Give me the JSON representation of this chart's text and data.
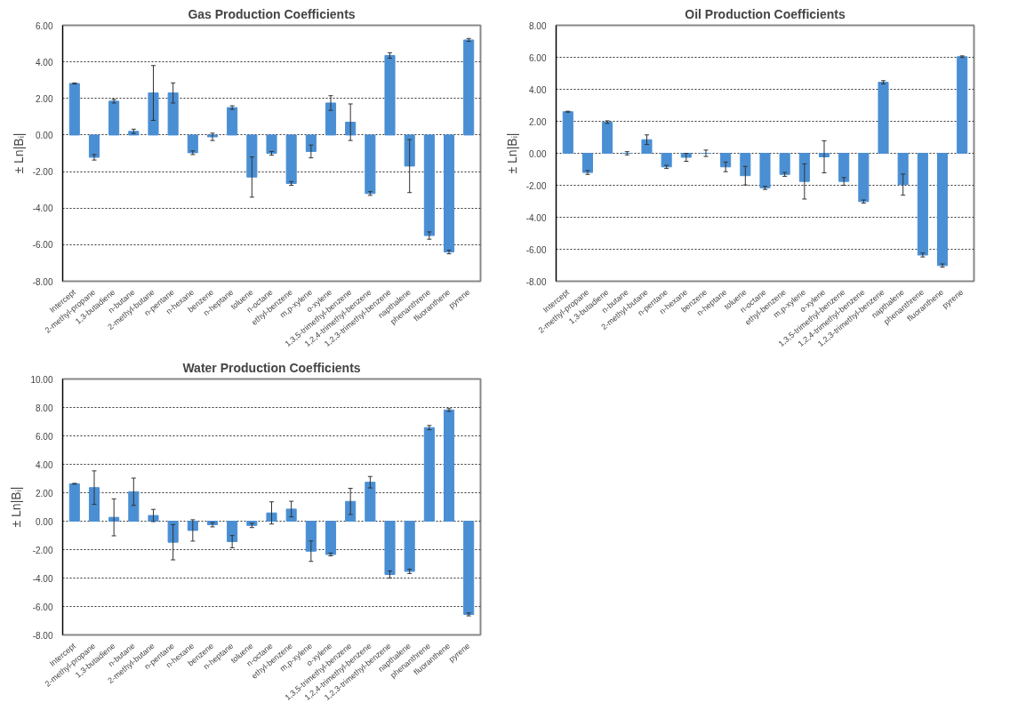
{
  "chart_data": [
    {
      "type": "bar",
      "title": "Gas Production Coefficients",
      "ylabel": "± Ln|Bᵢ|",
      "color": "#4a8fd4",
      "grid": "y",
      "categories": [
        "Intercept",
        "2-methyl-propane",
        "1,3-butadiene",
        "n-butane",
        "2-methyl-butane",
        "n-pentane",
        "n-hexane",
        "benzene",
        "n-heptane",
        "toluene",
        "n-octane",
        "ethyl-benzene",
        "m,p-xylene",
        "o-xylene",
        "1,3,5-trimethyl-benzene",
        "1,2,4-trimethyl-benzene",
        "1,2,3-trimethyl-benzene",
        "napthalene",
        "phenanthrene",
        "fluoranthene",
        "pyrene"
      ],
      "values": [
        2.82,
        -1.22,
        1.85,
        0.2,
        2.3,
        2.3,
        -0.97,
        -0.1,
        1.5,
        -2.3,
        -1.0,
        -2.65,
        -0.9,
        1.75,
        0.7,
        -3.2,
        4.35,
        -1.7,
        -5.5,
        -6.4,
        5.2
      ],
      "errors": [
        0.03,
        0.15,
        0.1,
        0.12,
        1.5,
        0.55,
        0.1,
        0.2,
        0.1,
        1.1,
        0.1,
        0.1,
        0.35,
        0.4,
        1.0,
        0.1,
        0.15,
        1.45,
        0.2,
        0.1,
        0.08
      ],
      "ylim": [
        -8,
        6
      ],
      "yticks": [
        {
          "value": -8,
          "label": "-8.00"
        },
        {
          "value": -6,
          "label": "-6.00"
        },
        {
          "value": -4,
          "label": "-4.00"
        },
        {
          "value": -2,
          "label": "-2.00"
        },
        {
          "value": 0,
          "label": "0.00"
        },
        {
          "value": 2,
          "label": "2.00"
        },
        {
          "value": 4,
          "label": "4.00"
        },
        {
          "value": 6,
          "label": "6.00"
        }
      ]
    },
    {
      "type": "bar",
      "title": "Oil Production Coefficients",
      "ylabel": "± Ln|Bᵢ|",
      "color": "#4a8fd4",
      "grid": "y",
      "categories": [
        "Intercept",
        "2-methyl-propane",
        "1,3-butadiene",
        "n-butane",
        "2-methyl-butane",
        "n-pentane",
        "n-hexane",
        "benzene",
        "n-heptane",
        "toluene",
        "n-octane",
        "ethyl-benzene",
        "m,p-xylene",
        "o-xylene",
        "1,3,5-trimethyl-benzene",
        "1,2,4-trimethyl-benzene",
        "1,2,3-trimethyl-benzene",
        "napthalene",
        "phenanthrene",
        "fluoranthene",
        "pyrene"
      ],
      "values": [
        2.6,
        -1.2,
        1.95,
        0.0,
        0.85,
        -0.85,
        -0.25,
        0.0,
        -0.85,
        -1.4,
        -2.16,
        -1.32,
        -1.76,
        -0.22,
        -1.76,
        -3.02,
        4.44,
        -1.96,
        -6.36,
        -7.02,
        6.04
      ],
      "errors": [
        0.03,
        0.12,
        0.08,
        0.1,
        0.3,
        0.1,
        0.25,
        0.2,
        0.3,
        0.58,
        0.1,
        0.12,
        1.1,
        1.0,
        0.24,
        0.1,
        0.1,
        0.66,
        0.12,
        0.1,
        0.05
      ],
      "ylim": [
        -8,
        8
      ],
      "yticks": [
        {
          "value": -8,
          "label": "-8.00"
        },
        {
          "value": -6,
          "label": "-6.00"
        },
        {
          "value": -4,
          "label": "-4.00"
        },
        {
          "value": -2,
          "label": "-2.00"
        },
        {
          "value": 0,
          "label": "0.00"
        },
        {
          "value": 2,
          "label": "2.00"
        },
        {
          "value": 4,
          "label": "4.00"
        },
        {
          "value": 6,
          "label": "6.00"
        },
        {
          "value": 8,
          "label": "8.00"
        }
      ]
    },
    {
      "type": "bar",
      "title": "Water Production Coefficients",
      "ylabel": "± Ln|Bᵢ|",
      "color": "#4a8fd4",
      "grid": "y",
      "categories": [
        "Intercept",
        "2-methyl-propane",
        "1,3-butadiene",
        "n-butane",
        "2-methyl-butane",
        "n-pentane",
        "n-hexane",
        "benzene",
        "n-heptane",
        "toluene",
        "n-octane",
        "ethyl-benzene",
        "m,p-xylene",
        "o-xylene",
        "1,3,5-trimethyl-benzene",
        "1,2,4-trimethyl-benzene",
        "1,2,3-trimethyl-benzene",
        "napthalene",
        "phenanthrene",
        "fluoranthene",
        "pyrene"
      ],
      "values": [
        2.63,
        2.36,
        0.27,
        2.07,
        0.4,
        -1.48,
        -0.65,
        -0.25,
        -1.44,
        -0.3,
        0.58,
        0.85,
        -2.11,
        -2.34,
        1.39,
        2.74,
        -3.75,
        -3.53,
        6.58,
        7.82,
        -6.56
      ],
      "errors": [
        0.03,
        1.18,
        1.3,
        0.96,
        0.43,
        1.24,
        0.75,
        0.15,
        0.43,
        0.15,
        0.78,
        0.55,
        0.72,
        0.1,
        0.92,
        0.4,
        0.25,
        0.15,
        0.15,
        0.1,
        0.1
      ],
      "ylim": [
        -8,
        10
      ],
      "yticks": [
        {
          "value": -8,
          "label": "-8.00"
        },
        {
          "value": -6,
          "label": "-6.00"
        },
        {
          "value": -4,
          "label": "-4.00"
        },
        {
          "value": -2,
          "label": "-2.00"
        },
        {
          "value": 0,
          "label": "0.00"
        },
        {
          "value": 2,
          "label": "2.00"
        },
        {
          "value": 4,
          "label": "4.00"
        },
        {
          "value": 6,
          "label": "6.00"
        },
        {
          "value": 8,
          "label": "8.00"
        },
        {
          "value": 10,
          "label": "10.00"
        }
      ]
    }
  ]
}
